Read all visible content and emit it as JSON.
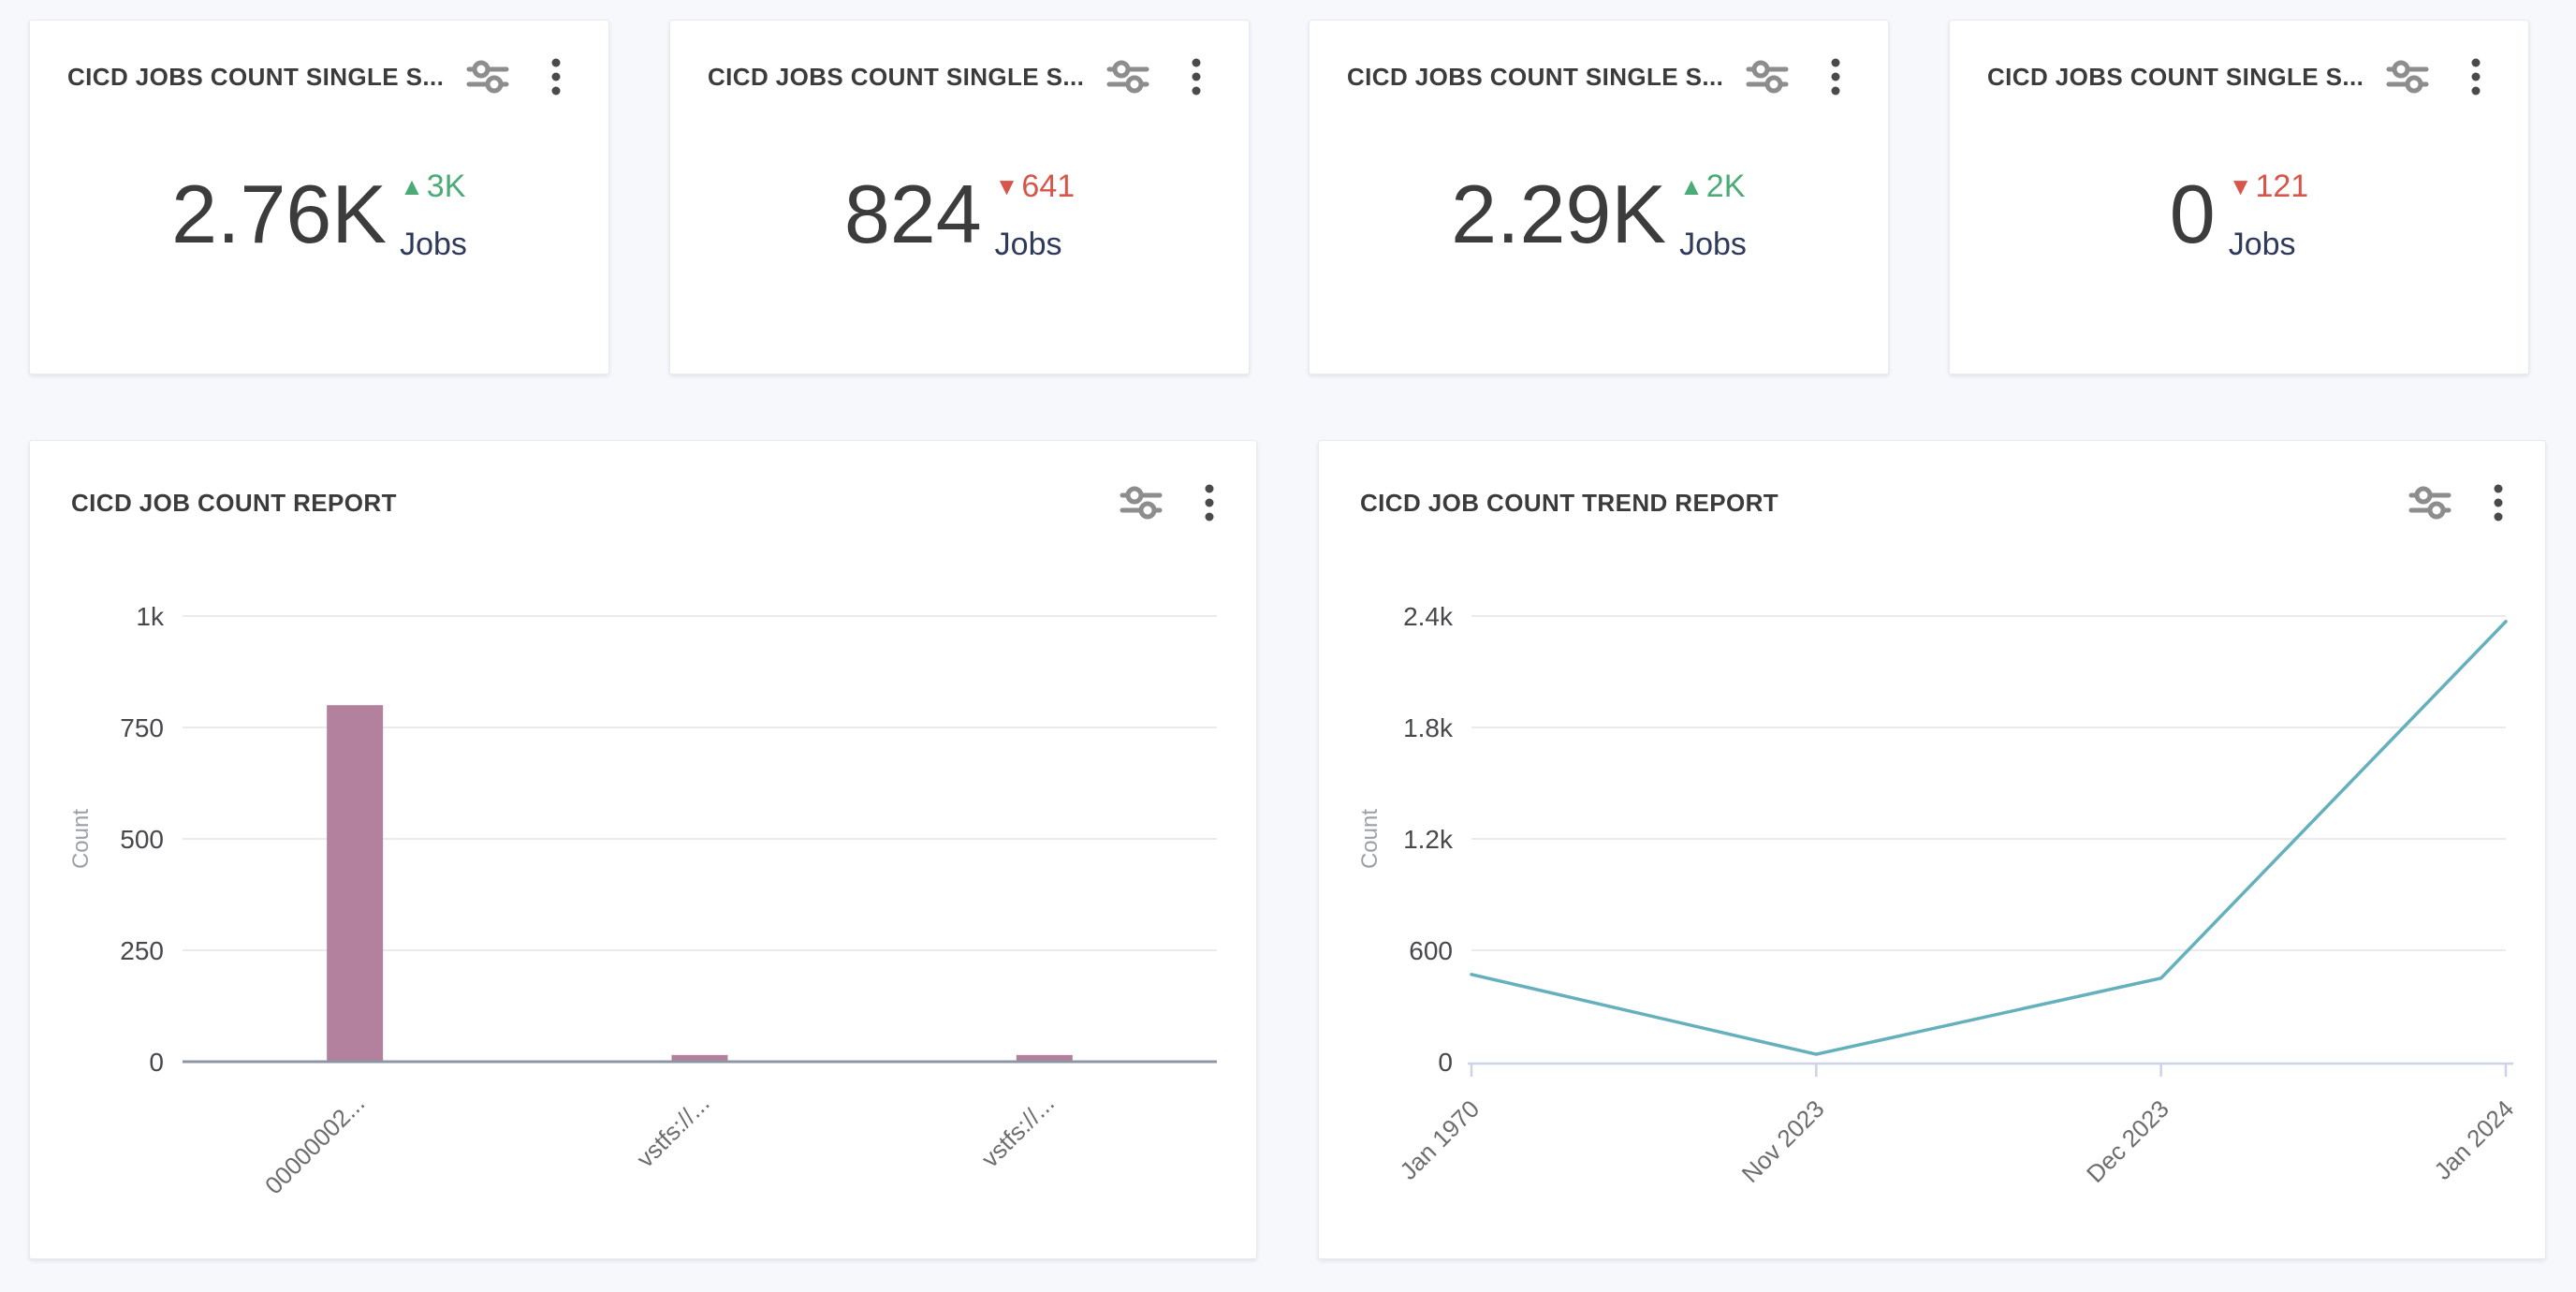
{
  "page": {
    "background": "#f7f8fc"
  },
  "glyphs": {
    "up_arrow": "▲",
    "down_arrow": "▼"
  },
  "colors": {
    "delta_up": "#4bab77",
    "delta_down": "#d95449",
    "unit_label": "#2f3a5a",
    "value_text": "#3c3c3c",
    "bar": "#b3809e",
    "line": "#64b0bc"
  },
  "icons": {
    "filter": "filter-slider",
    "menu": "kebab-menu"
  },
  "stat_cards": [
    {
      "title": "CICD JOBS COUNT SINGLE S...",
      "value": "2.76K",
      "delta": "3K",
      "delta_direction": "up",
      "unit": "Jobs"
    },
    {
      "title": "CICD JOBS COUNT SINGLE S...",
      "value": "824",
      "delta": "641",
      "delta_direction": "down",
      "unit": "Jobs"
    },
    {
      "title": "CICD JOBS COUNT SINGLE S...",
      "value": "2.29K",
      "delta": "2K",
      "delta_direction": "up",
      "unit": "Jobs"
    },
    {
      "title": "CICD JOBS COUNT SINGLE S...",
      "value": "0",
      "delta": "121",
      "delta_direction": "down",
      "unit": "Jobs"
    }
  ],
  "chart_cards": [
    {
      "title": "CICD JOB COUNT REPORT"
    },
    {
      "title": "CICD JOB COUNT TREND REPORT"
    }
  ],
  "chart_data": [
    {
      "type": "bar",
      "title": "CICD JOB COUNT REPORT",
      "categories": [
        "00000002...",
        "vstfs://...",
        "vstfs://..."
      ],
      "values": [
        800,
        15,
        15
      ],
      "xlabel": "",
      "ylabel": "Count",
      "ylim": [
        0,
        1000
      ],
      "yticks": [
        "0",
        "250",
        "500",
        "750",
        "1k"
      ],
      "grid": true,
      "legend_position": "none",
      "bar_color": "#b3809e"
    },
    {
      "type": "line",
      "title": "CICD JOB COUNT TREND REPORT",
      "x": [
        "Jan 1970",
        "Nov 2023",
        "Dec 2023",
        "Jan 2024"
      ],
      "values": [
        470,
        40,
        450,
        2370
      ],
      "xlabel": "",
      "ylabel": "Count",
      "ylim": [
        0,
        2400
      ],
      "yticks": [
        "0",
        "600",
        "1.2k",
        "1.8k",
        "2.4k"
      ],
      "grid": true,
      "legend_position": "none",
      "line_color": "#64b0bc"
    }
  ]
}
